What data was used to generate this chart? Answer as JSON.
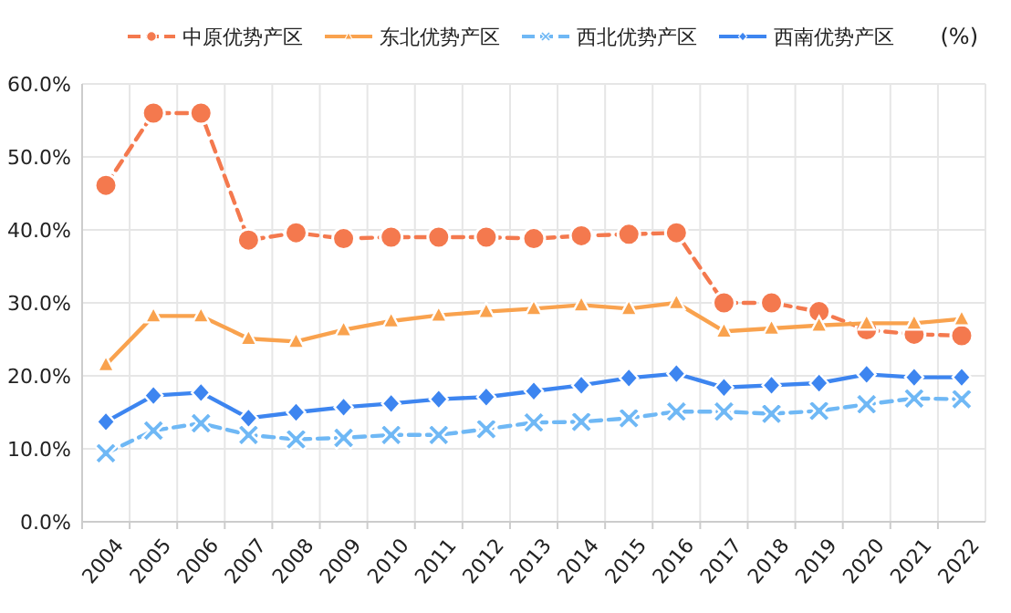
{
  "chart_data": {
    "type": "line",
    "categories": [
      "2004",
      "2005",
      "2006",
      "2007",
      "2008",
      "2009",
      "2010",
      "2011",
      "2012",
      "2013",
      "2014",
      "2015",
      "2016",
      "2017",
      "2018",
      "2019",
      "2020",
      "2021",
      "2022"
    ],
    "series": [
      {
        "name": "中原优势产区",
        "color": "#f4794e",
        "marker": "circle",
        "line_style": "dashed",
        "values": [
          46.1,
          56.0,
          56.0,
          38.6,
          39.6,
          38.8,
          39.0,
          39.0,
          39.0,
          38.8,
          39.2,
          39.4,
          39.6,
          30.0,
          30.0,
          28.8,
          26.3,
          25.7,
          25.5
        ]
      },
      {
        "name": "东北优势产区",
        "color": "#f9a24e",
        "marker": "triangle",
        "line_style": "solid",
        "values": [
          21.5,
          28.2,
          28.2,
          25.1,
          24.7,
          26.3,
          27.5,
          28.3,
          28.8,
          29.2,
          29.7,
          29.2,
          30.0,
          26.1,
          26.5,
          26.9,
          27.2,
          27.2,
          27.8
        ]
      },
      {
        "name": "西北优势产区",
        "color": "#6fb8f5",
        "marker": "cross",
        "line_style": "dashed",
        "values": [
          9.4,
          12.5,
          13.5,
          11.9,
          11.3,
          11.5,
          11.9,
          11.9,
          12.7,
          13.6,
          13.7,
          14.2,
          15.1,
          15.1,
          14.8,
          15.2,
          16.1,
          16.9,
          16.8
        ]
      },
      {
        "name": "西南优势产区",
        "color": "#3d85f0",
        "marker": "diamond",
        "line_style": "solid",
        "values": [
          13.7,
          17.3,
          17.7,
          14.2,
          15.0,
          15.7,
          16.2,
          16.8,
          17.1,
          17.9,
          18.7,
          19.7,
          20.3,
          18.4,
          18.7,
          19.0,
          20.2,
          19.8,
          19.8
        ]
      }
    ],
    "ylim": [
      0,
      60
    ],
    "yticks": [
      {
        "value": 0,
        "label": "0.0%"
      },
      {
        "value": 10,
        "label": "10.0%"
      },
      {
        "value": 20,
        "label": "20.0%"
      },
      {
        "value": 30,
        "label": "30.0%"
      },
      {
        "value": 40,
        "label": "40.0%"
      },
      {
        "value": 50,
        "label": "50.0%"
      },
      {
        "value": 60,
        "label": "60.0%"
      }
    ],
    "grid": true,
    "legend": "top",
    "annotations": [
      "(%)"
    ]
  }
}
